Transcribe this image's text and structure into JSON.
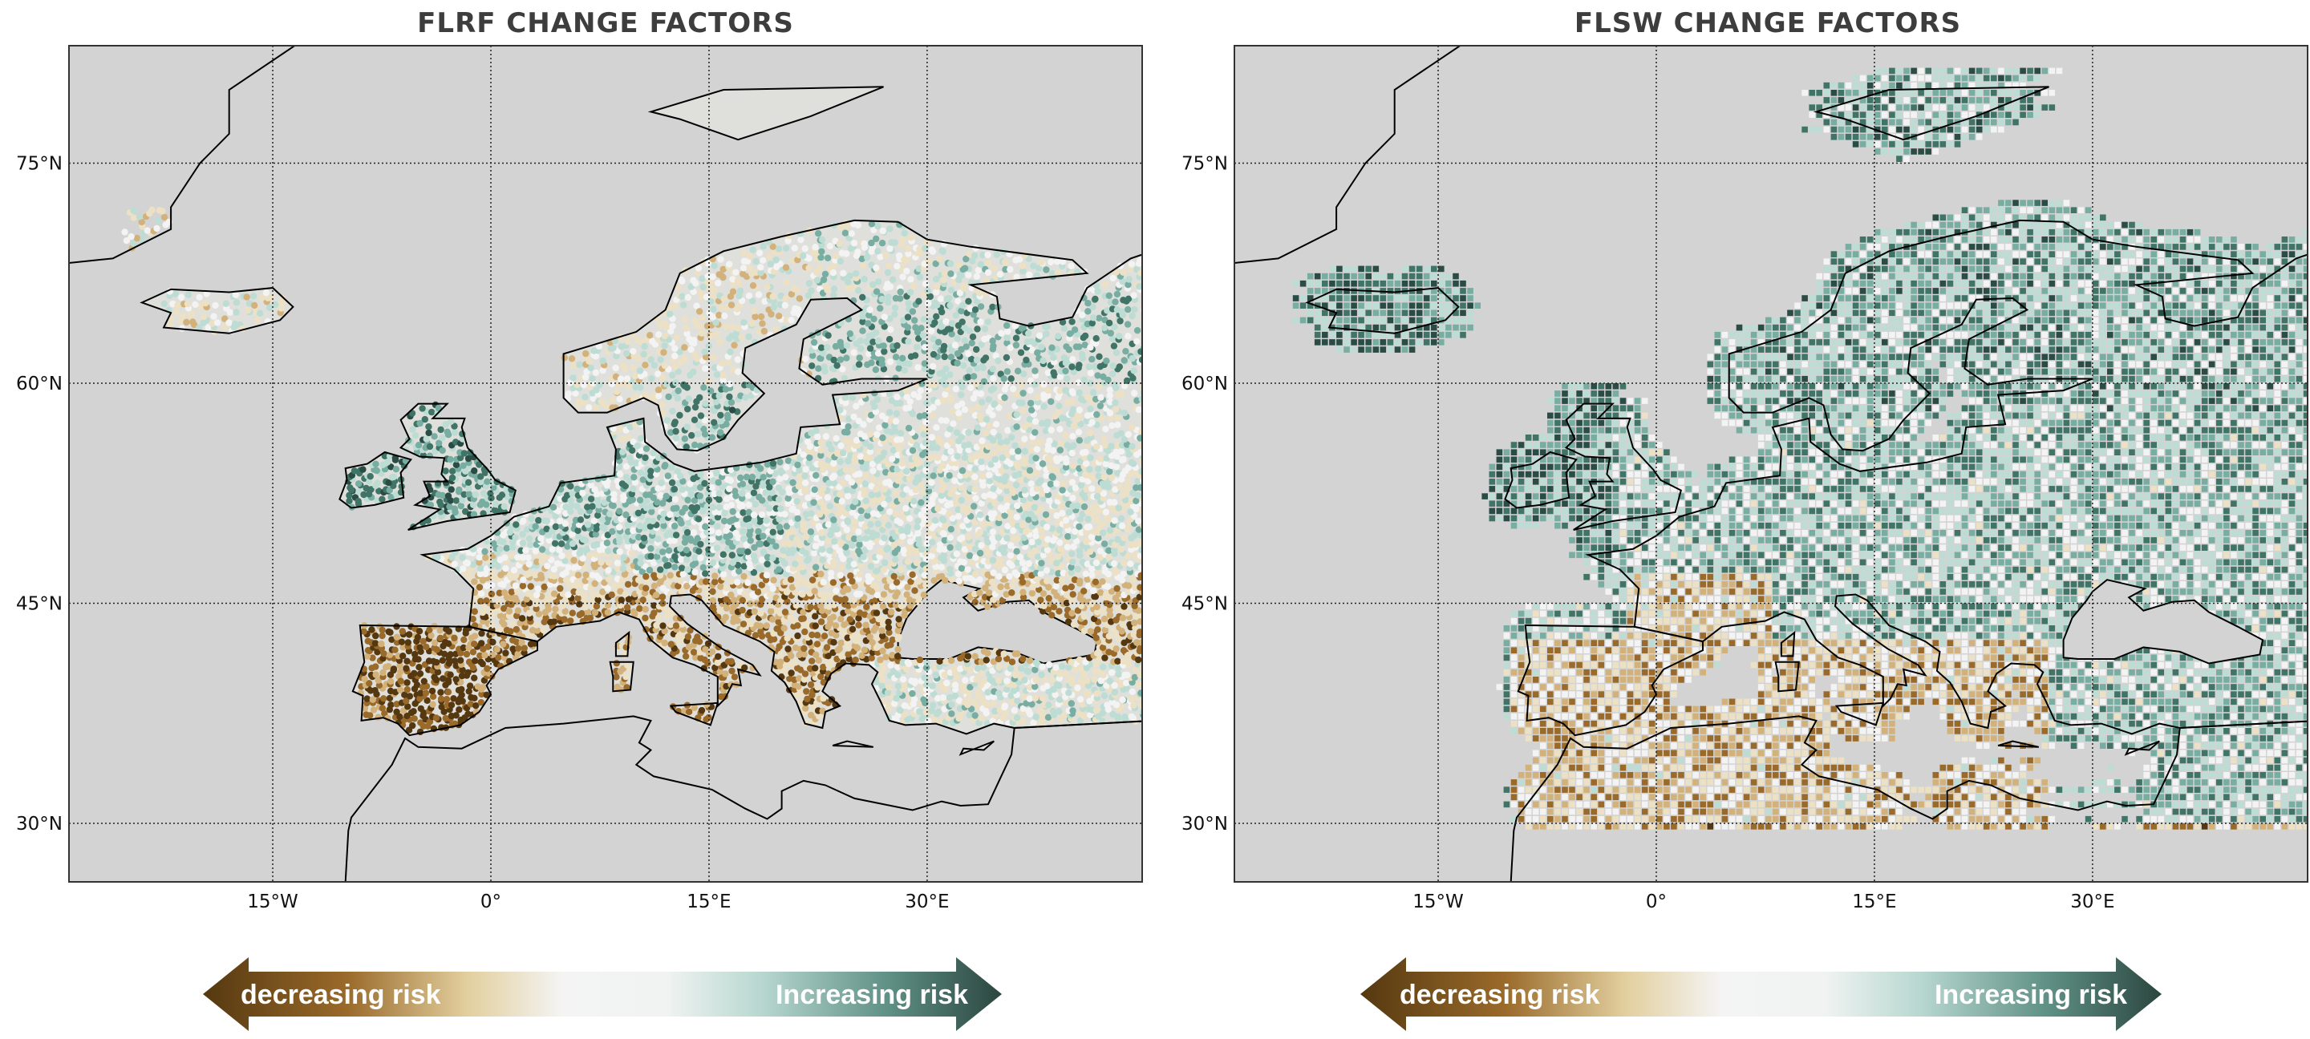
{
  "panels": [
    {
      "title": "FLRF CHANGE FACTORS",
      "style": "points",
      "lat_ticks": [
        "75°N",
        "60°N",
        "45°N",
        "30°N"
      ],
      "lon_ticks": [
        "15°W",
        "0°",
        "15°E",
        "30°E"
      ],
      "legend": {
        "left_label": "decreasing risk",
        "right_label": "Increasing risk"
      }
    },
    {
      "title": "FLSW CHANGE FACTORS",
      "style": "grid-cells",
      "lat_ticks": [
        "75°N",
        "60°N",
        "45°N",
        "30°N"
      ],
      "lon_ticks": [
        "15°W",
        "0°",
        "15°E",
        "30°E"
      ],
      "legend": {
        "left_label": "decreasing risk",
        "right_label": "Increasing risk"
      }
    }
  ],
  "colors": {
    "ocean": "#d3d3d3",
    "scale": [
      "#553810",
      "#9a6a2a",
      "#d2b27a",
      "#ece1c4",
      "#f3f3f3",
      "#bcdcd4",
      "#78ada2",
      "#3f7466",
      "#2a4c44"
    ],
    "title": "#3d3d3d"
  }
}
